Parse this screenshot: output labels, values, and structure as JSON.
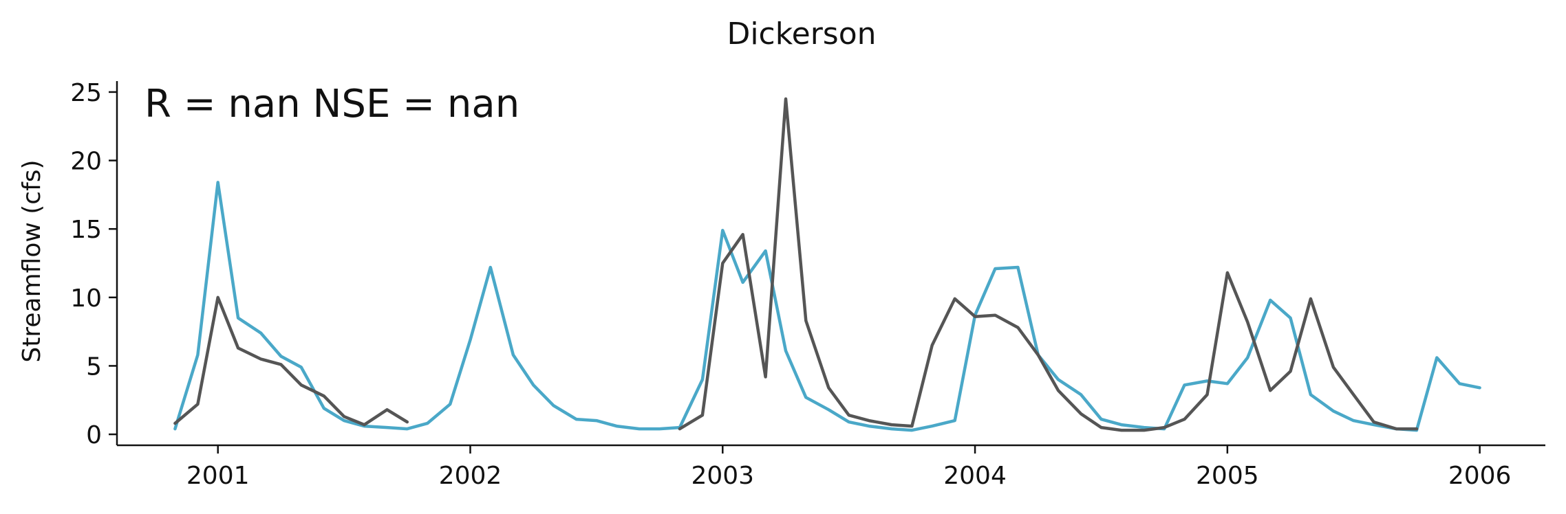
{
  "chart_data": {
    "type": "line",
    "title": "Dickerson",
    "xlabel": "",
    "ylabel": "Streamflow (cfs)",
    "annotation": "R = nan  NSE = nan",
    "xlim": [
      2000.6,
      2006.26
    ],
    "ylim": [
      -0.8,
      25.8
    ],
    "x_ticks": [
      {
        "value": 2001,
        "label": "2001"
      },
      {
        "value": 2002,
        "label": "2002"
      },
      {
        "value": 2003,
        "label": "2003"
      },
      {
        "value": 2004,
        "label": "2004"
      },
      {
        "value": 2005,
        "label": "2005"
      },
      {
        "value": 2006,
        "label": "2006"
      }
    ],
    "y_ticks": [
      {
        "value": 0,
        "label": "0"
      },
      {
        "value": 5,
        "label": "5"
      },
      {
        "value": 10,
        "label": "10"
      },
      {
        "value": 15,
        "label": "15"
      },
      {
        "value": 20,
        "label": "20"
      },
      {
        "value": 25,
        "label": "25"
      }
    ],
    "grid": false,
    "series": [
      {
        "color": "#4aa8c8",
        "segments": [
          [
            [
              2000.83,
              0.4
            ],
            [
              2000.92,
              5.8
            ],
            [
              2001.0,
              18.4
            ],
            [
              2001.08,
              8.5
            ],
            [
              2001.17,
              7.4
            ],
            [
              2001.25,
              5.7
            ],
            [
              2001.33,
              4.9
            ],
            [
              2001.42,
              1.9
            ],
            [
              2001.5,
              1.0
            ],
            [
              2001.58,
              0.6
            ],
            [
              2001.67,
              0.5
            ],
            [
              2001.75,
              0.4
            ],
            [
              2001.83,
              0.8
            ],
            [
              2001.92,
              2.2
            ],
            [
              2002.0,
              6.9
            ],
            [
              2002.08,
              12.2
            ],
            [
              2002.17,
              5.8
            ],
            [
              2002.25,
              3.6
            ],
            [
              2002.33,
              2.1
            ],
            [
              2002.42,
              1.1
            ],
            [
              2002.5,
              1.0
            ],
            [
              2002.58,
              0.6
            ],
            [
              2002.67,
              0.4
            ],
            [
              2002.75,
              0.4
            ],
            [
              2002.83,
              0.5
            ],
            [
              2002.92,
              4.0
            ],
            [
              2003.0,
              14.9
            ],
            [
              2003.08,
              11.1
            ],
            [
              2003.17,
              13.4
            ],
            [
              2003.25,
              6.1
            ],
            [
              2003.33,
              2.7
            ],
            [
              2003.42,
              1.8
            ],
            [
              2003.5,
              0.9
            ],
            [
              2003.58,
              0.6
            ],
            [
              2003.67,
              0.4
            ],
            [
              2003.75,
              0.3
            ],
            [
              2003.83,
              0.6
            ],
            [
              2003.92,
              1.0
            ],
            [
              2004.0,
              8.7
            ],
            [
              2004.08,
              12.1
            ],
            [
              2004.17,
              12.2
            ],
            [
              2004.25,
              5.8
            ],
            [
              2004.33,
              4.0
            ],
            [
              2004.42,
              2.9
            ],
            [
              2004.5,
              1.1
            ],
            [
              2004.58,
              0.7
            ],
            [
              2004.67,
              0.5
            ],
            [
              2004.75,
              0.4
            ],
            [
              2004.83,
              3.6
            ],
            [
              2004.92,
              3.9
            ],
            [
              2005.0,
              3.7
            ],
            [
              2005.08,
              5.6
            ],
            [
              2005.17,
              9.8
            ],
            [
              2005.25,
              8.5
            ],
            [
              2005.33,
              2.9
            ],
            [
              2005.42,
              1.7
            ],
            [
              2005.5,
              1.0
            ],
            [
              2005.58,
              0.7
            ],
            [
              2005.67,
              0.4
            ],
            [
              2005.75,
              0.3
            ],
            [
              2005.83,
              5.6
            ],
            [
              2005.92,
              3.7
            ],
            [
              2006.0,
              3.4
            ]
          ]
        ]
      },
      {
        "color": "#555555",
        "segments": [
          [
            [
              2000.83,
              0.8
            ],
            [
              2000.92,
              2.2
            ],
            [
              2001.0,
              10.0
            ],
            [
              2001.08,
              6.3
            ],
            [
              2001.17,
              5.5
            ],
            [
              2001.25,
              5.1
            ],
            [
              2001.33,
              3.6
            ],
            [
              2001.42,
              2.8
            ],
            [
              2001.5,
              1.3
            ],
            [
              2001.58,
              0.7
            ],
            [
              2001.67,
              1.8
            ],
            [
              2001.75,
              0.9
            ]
          ],
          [
            [
              2002.83,
              0.4
            ],
            [
              2002.92,
              1.4
            ],
            [
              2003.0,
              12.5
            ],
            [
              2003.08,
              14.6
            ],
            [
              2003.17,
              4.2
            ],
            [
              2003.25,
              24.5
            ],
            [
              2003.33,
              8.3
            ],
            [
              2003.42,
              3.4
            ],
            [
              2003.5,
              1.4
            ],
            [
              2003.58,
              1.0
            ],
            [
              2003.67,
              0.7
            ],
            [
              2003.75,
              0.6
            ],
            [
              2003.83,
              6.5
            ],
            [
              2003.92,
              9.9
            ],
            [
              2004.0,
              8.6
            ],
            [
              2004.08,
              8.7
            ],
            [
              2004.17,
              7.8
            ],
            [
              2004.25,
              5.8
            ],
            [
              2004.33,
              3.2
            ],
            [
              2004.42,
              1.5
            ],
            [
              2004.5,
              0.5
            ],
            [
              2004.58,
              0.3
            ],
            [
              2004.67,
              0.3
            ],
            [
              2004.75,
              0.5
            ],
            [
              2004.83,
              1.1
            ],
            [
              2004.92,
              2.9
            ],
            [
              2005.0,
              11.8
            ],
            [
              2005.08,
              8.2
            ],
            [
              2005.17,
              3.2
            ],
            [
              2005.25,
              4.6
            ],
            [
              2005.33,
              9.9
            ],
            [
              2005.42,
              4.9
            ],
            [
              2005.5,
              2.9
            ],
            [
              2005.58,
              0.9
            ],
            [
              2005.67,
              0.4
            ],
            [
              2005.75,
              0.4
            ]
          ]
        ]
      }
    ]
  }
}
